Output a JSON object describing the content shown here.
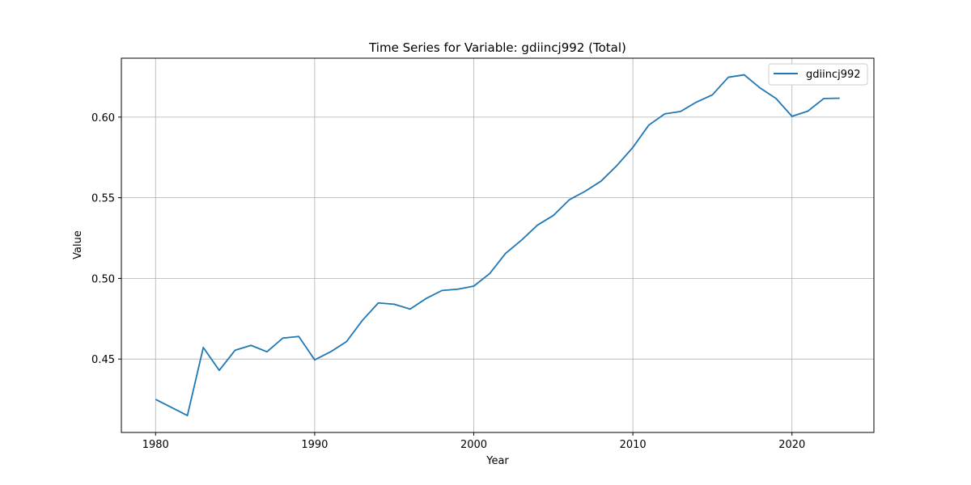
{
  "chart_data": {
    "type": "line",
    "title": "Time Series for Variable: gdiincj992 (Total)",
    "xlabel": "Year",
    "ylabel": "Value",
    "xlim": [
      1977.85,
      2025.15
    ],
    "ylim": [
      0.4045,
      0.6365
    ],
    "xticks": [
      1980,
      1990,
      2000,
      2010,
      2020
    ],
    "yticks": [
      0.45,
      0.5,
      0.55,
      0.6
    ],
    "ytick_labels": [
      "0.45",
      "0.50",
      "0.55",
      "0.60"
    ],
    "grid": true,
    "legend_position": "top-right",
    "series": [
      {
        "name": "gdiincj992",
        "color": "#1f77b4",
        "x": [
          1980,
          1981,
          1982,
          1983,
          1984,
          1985,
          1986,
          1987,
          1988,
          1989,
          1990,
          1991,
          1992,
          1993,
          1994,
          1995,
          1996,
          1997,
          1998,
          1999,
          2000,
          2001,
          2002,
          2003,
          2004,
          2005,
          2006,
          2007,
          2008,
          2009,
          2010,
          2011,
          2012,
          2013,
          2014,
          2015,
          2016,
          2017,
          2018,
          2019,
          2020,
          2021,
          2022,
          2023
        ],
        "y": [
          0.425,
          0.42,
          0.415,
          0.4572,
          0.443,
          0.4555,
          0.4585,
          0.4545,
          0.463,
          0.464,
          0.4495,
          0.4545,
          0.4608,
          0.474,
          0.4848,
          0.484,
          0.481,
          0.4875,
          0.4925,
          0.4933,
          0.4952,
          0.503,
          0.5155,
          0.5237,
          0.533,
          0.539,
          0.5487,
          0.554,
          0.5603,
          0.57,
          0.5812,
          0.595,
          0.602,
          0.6035,
          0.6093,
          0.6138,
          0.6247,
          0.6262,
          0.618,
          0.6115,
          0.6005,
          0.6037,
          0.6115,
          0.6117
        ]
      }
    ]
  }
}
